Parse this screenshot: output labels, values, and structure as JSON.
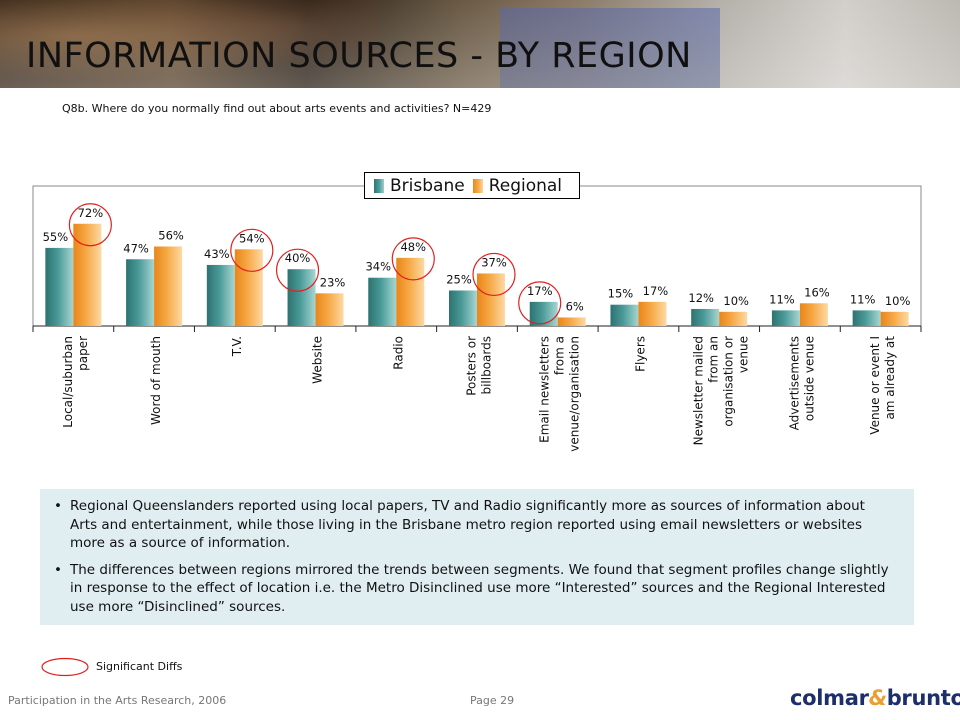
{
  "header": {
    "title": "INFORMATION SOURCES - BY REGION"
  },
  "question": "Q8b. Where do you normally find out about arts events and activities? N=429",
  "colors": {
    "brisbane": "#4a9a98",
    "regional": "#f6a844",
    "circle": "#e02020"
  },
  "chart_data": {
    "type": "bar",
    "categories": [
      "Local/suburban paper",
      "Word of mouth",
      "T.V.",
      "Website",
      "Radio",
      "Posters or billboards",
      "Email newsletters from a venue/organisation",
      "Flyers",
      "Newsletter mailed from an organisation or venue",
      "Advertisements outside venue",
      "Venue or event I am already at"
    ],
    "category_lines": [
      [
        "Local/suburban",
        "paper"
      ],
      [
        "Word of mouth"
      ],
      [
        "T.V."
      ],
      [
        "Website"
      ],
      [
        "Radio"
      ],
      [
        "Posters or",
        "billboards"
      ],
      [
        "Email newsletters",
        "from a",
        "venue/organisation"
      ],
      [
        "Flyers"
      ],
      [
        "Newsletter mailed",
        "from an",
        "organisation or",
        "venue"
      ],
      [
        "Advertisements",
        "outside venue"
      ],
      [
        "Venue or event I",
        "am already at"
      ]
    ],
    "series": [
      {
        "name": "Brisbane",
        "values": [
          55,
          47,
          43,
          40,
          34,
          25,
          17,
          15,
          12,
          11,
          11
        ]
      },
      {
        "name": "Regional",
        "values": [
          72,
          56,
          54,
          23,
          48,
          37,
          6,
          17,
          10,
          16,
          10
        ]
      }
    ],
    "value_labels": {
      "Brisbane": [
        "55%",
        "47%",
        "43%",
        "40%",
        "34%",
        "25%",
        "17%",
        "15%",
        "12%",
        "11%",
        "11%"
      ],
      "Regional": [
        "72%",
        "56%",
        "54%",
        "23%",
        "48%",
        "37%",
        "6%",
        "17%",
        "10%",
        "16%",
        "10%"
      ]
    },
    "significant": [
      {
        "series": "Regional",
        "category": 0
      },
      {
        "series": "Regional",
        "category": 2
      },
      {
        "series": "Brisbane",
        "category": 3
      },
      {
        "series": "Regional",
        "category": 4
      },
      {
        "series": "Regional",
        "category": 5
      },
      {
        "series": "Brisbane",
        "category": 6
      }
    ],
    "ylim": [
      0,
      100
    ],
    "legend_position": "top-center",
    "grid": false
  },
  "notes": [
    "Regional Queenslanders reported using local papers,  TV and Radio significantly more as sources of information about Arts and entertainment, while those living in the Brisbane metro region reported using email newsletters or websites more as a source of information.",
    "The differences between regions mirrored the trends between segments.  We found that segment profiles change slightly in response to the effect of location i.e. the Metro Disinclined use more “Interested” sources and the Regional Interested use more “Disinclined” sources."
  ],
  "key": {
    "label": "Significant Diffs"
  },
  "footer": {
    "source": "Participation in the Arts Research, 2006",
    "page": "Page 29",
    "logo_left": "colmar",
    "logo_amp": "&",
    "logo_right": "brunton"
  }
}
